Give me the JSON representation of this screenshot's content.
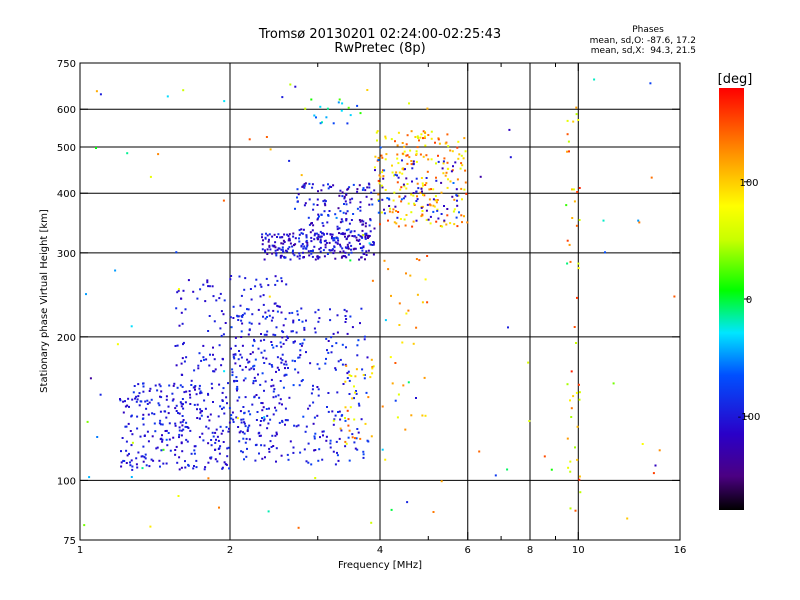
{
  "chart_data": {
    "type": "scatter",
    "title": "Tromsø 20130201 02:24:00-02:25:43",
    "subtitle": "RwPretec (8p)",
    "xlabel": "Frequency [MHz]",
    "ylabel": "Stationary phase Virtual Height [km]",
    "x_scale": "log",
    "y_scale": "log",
    "xlim": [
      1,
      16
    ],
    "ylim": [
      75,
      750
    ],
    "x_ticks": [
      1,
      2,
      4,
      6,
      8,
      10,
      16
    ],
    "x_tick_labels": [
      "1",
      "2",
      "4",
      "6",
      "8",
      "10",
      "16"
    ],
    "x_grid": [
      2,
      4,
      6,
      8,
      10
    ],
    "x_minor_ticks": [
      3,
      5,
      7,
      9
    ],
    "y_ticks": [
      75,
      100,
      200,
      300,
      400,
      500,
      600,
      750
    ],
    "y_tick_labels": [
      "75",
      "100",
      "200",
      "300",
      "400",
      "500",
      "600",
      "750"
    ],
    "y_grid": [
      100,
      200,
      300,
      400,
      500,
      600
    ],
    "grid": true,
    "stats": {
      "header": "Phases",
      "line_o": "mean, sd,O: -87.6, 17.2",
      "line_x": "mean, sd,X:  94.3, 21.5"
    },
    "colorbar": {
      "label": "[deg]",
      "range": [
        -180,
        180
      ],
      "ticks": [
        100,
        0,
        -100
      ],
      "tick_labels": [
        "100",
        "0",
        "-100"
      ],
      "colormap": "rainbow (black-purple-blue-cyan-green-yellow-orange-red)"
    },
    "clusters": [
      {
        "x": [
          1.2,
          2.0
        ],
        "y": [
          105,
          160
        ],
        "phase": [
          -120,
          -80
        ],
        "n": 260
      },
      {
        "x": [
          1.55,
          2.6
        ],
        "y": [
          115,
          270
        ],
        "phase": [
          -120,
          -85
        ],
        "n": 240
      },
      {
        "x": [
          2.0,
          3.8
        ],
        "y": [
          108,
          230
        ],
        "phase": [
          -120,
          -70
        ],
        "n": 320
      },
      {
        "x": [
          2.3,
          3.9
        ],
        "y": [
          290,
          330
        ],
        "phase": [
          -140,
          -80
        ],
        "n": 240
      },
      {
        "x": [
          2.7,
          3.9
        ],
        "y": [
          320,
          420
        ],
        "phase": [
          -140,
          -70
        ],
        "n": 160
      },
      {
        "x": [
          3.9,
          6.0
        ],
        "y": [
          340,
          540
        ],
        "phase": [
          60,
          160
        ],
        "n": 210
      },
      {
        "x": [
          3.9,
          5.8
        ],
        "y": [
          350,
          470
        ],
        "phase": [
          -135,
          -60
        ],
        "n": 70
      },
      {
        "x": [
          2.9,
          3.7
        ],
        "y": [
          560,
          640
        ],
        "phase": [
          -120,
          30
        ],
        "n": 18
      },
      {
        "x": [
          3.3,
          3.9
        ],
        "y": [
          115,
          180
        ],
        "phase": [
          60,
          150
        ],
        "n": 30
      },
      {
        "x": [
          4.0,
          5.0
        ],
        "y": [
          110,
          300
        ],
        "phase": [
          60,
          160
        ],
        "n": 30
      },
      {
        "x": [
          9.5,
          10.1
        ],
        "y": [
          85,
          650
        ],
        "phase": [
          40,
          170
        ],
        "n": 45
      },
      {
        "x": [
          1.0,
          16.0
        ],
        "y": [
          78,
          700
        ],
        "phase": [
          -140,
          160
        ],
        "n": 110
      }
    ]
  }
}
